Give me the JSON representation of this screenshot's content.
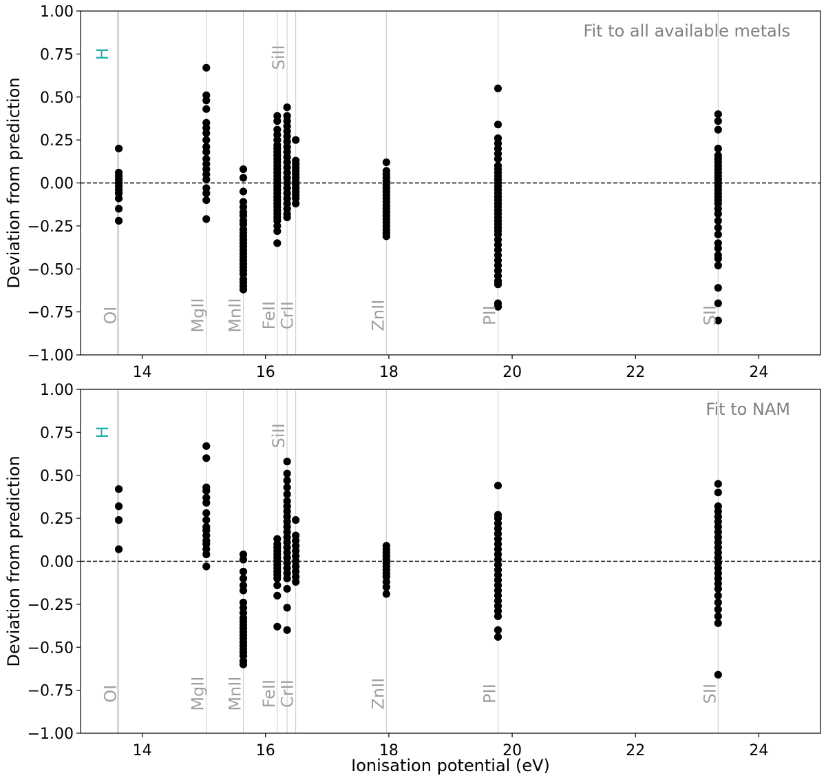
{
  "chart_data": [
    {
      "type": "scatter",
      "title": "Fit to all available metals",
      "xlabel": "",
      "ylabel": "Deviation from prediction",
      "xlim": [
        13,
        25
      ],
      "ylim": [
        -1.0,
        1.0
      ],
      "xticks": [
        "14",
        "16",
        "18",
        "20",
        "22",
        "24"
      ],
      "yticks": [
        "1.00",
        "0.75",
        "0.50",
        "0.25",
        "0.00",
        "−0.25",
        "−0.50",
        "−0.75",
        "−1.00"
      ],
      "reference_line": {
        "y": 0.0,
        "style": "dashed"
      },
      "hydrogen_line": {
        "x": 13.6,
        "label": "H",
        "color": "#20b2aa"
      },
      "ion_lines": [
        {
          "x": 13.62,
          "label": "OI",
          "label_y": -0.77
        },
        {
          "x": 15.04,
          "label": "MgII",
          "label_y": -0.77
        },
        {
          "x": 15.64,
          "label": "MnII",
          "label_y": -0.77
        },
        {
          "x": 16.19,
          "label": "FeII",
          "label_y": -0.77
        },
        {
          "x": 16.35,
          "label": "SiII",
          "label_y": 0.73
        },
        {
          "x": 16.49,
          "label": "CrII",
          "label_y": -0.77
        },
        {
          "x": 17.96,
          "label": "ZnII",
          "label_y": -0.77
        },
        {
          "x": 19.77,
          "label": "PII",
          "label_y": -0.77
        },
        {
          "x": 23.34,
          "label": "SII",
          "label_y": -0.77
        }
      ],
      "series": [
        {
          "ion": "OI",
          "x": 13.62,
          "values": [
            0.2,
            0.06,
            0.04,
            0.02,
            0.0,
            -0.02,
            -0.04,
            -0.06,
            -0.09,
            -0.15,
            -0.22
          ]
        },
        {
          "ion": "MgII",
          "x": 15.04,
          "values": [
            0.67,
            0.51,
            0.48,
            0.43,
            0.35,
            0.32,
            0.29,
            0.25,
            0.21,
            0.18,
            0.14,
            0.11,
            0.08,
            0.05,
            0.02,
            -0.03,
            -0.06,
            -0.1,
            -0.21
          ]
        },
        {
          "ion": "MnII",
          "x": 15.64,
          "values": [
            0.08,
            0.03,
            -0.05,
            -0.11,
            -0.14,
            -0.17,
            -0.19,
            -0.22,
            -0.24,
            -0.27,
            -0.29,
            -0.31,
            -0.33,
            -0.35,
            -0.37,
            -0.39,
            -0.41,
            -0.43,
            -0.45,
            -0.47,
            -0.49,
            -0.51,
            -0.53,
            -0.56,
            -0.58,
            -0.6,
            -0.62
          ]
        },
        {
          "ion": "FeII",
          "x": 16.19,
          "values": [
            0.39,
            0.36,
            0.31,
            0.28,
            0.25,
            0.22,
            0.2,
            0.18,
            0.16,
            0.14,
            0.12,
            0.1,
            0.08,
            0.06,
            0.04,
            0.02,
            0.0,
            -0.02,
            -0.04,
            -0.06,
            -0.08,
            -0.1,
            -0.12,
            -0.14,
            -0.16,
            -0.18,
            -0.2,
            -0.22,
            -0.25,
            -0.28,
            -0.35
          ]
        },
        {
          "ion": "SiII",
          "x": 16.35,
          "values": [
            0.44,
            0.39,
            0.36,
            0.33,
            0.3,
            0.27,
            0.24,
            0.21,
            0.18,
            0.15,
            0.12,
            0.09,
            0.06,
            0.03,
            0.0,
            -0.03,
            -0.06,
            -0.09,
            -0.12,
            -0.15,
            -0.18,
            -0.2
          ]
        },
        {
          "ion": "CrII",
          "x": 16.49,
          "values": [
            0.25,
            0.13,
            0.11,
            0.09,
            0.07,
            0.05,
            0.03,
            0.01,
            -0.01,
            -0.03,
            -0.05,
            -0.07,
            -0.09,
            -0.12
          ]
        },
        {
          "ion": "ZnII",
          "x": 17.96,
          "values": [
            0.12,
            0.07,
            0.05,
            0.03,
            0.01,
            -0.01,
            -0.03,
            -0.05,
            -0.07,
            -0.09,
            -0.11,
            -0.13,
            -0.15,
            -0.17,
            -0.19,
            -0.21,
            -0.23,
            -0.25,
            -0.27,
            -0.29,
            -0.31
          ]
        },
        {
          "ion": "PII",
          "x": 19.77,
          "values": [
            0.55,
            0.34,
            0.26,
            0.23,
            0.2,
            0.17,
            0.14,
            0.1,
            0.08,
            0.06,
            0.04,
            0.02,
            0.0,
            -0.02,
            -0.04,
            -0.06,
            -0.08,
            -0.1,
            -0.12,
            -0.14,
            -0.16,
            -0.18,
            -0.2,
            -0.22,
            -0.24,
            -0.26,
            -0.28,
            -0.3,
            -0.33,
            -0.36,
            -0.39,
            -0.42,
            -0.45,
            -0.48,
            -0.51,
            -0.54,
            -0.57,
            -0.59,
            -0.7,
            -0.72
          ]
        },
        {
          "ion": "SII",
          "x": 23.34,
          "values": [
            0.4,
            0.36,
            0.31,
            0.2,
            0.16,
            0.14,
            0.12,
            0.1,
            0.08,
            0.06,
            0.04,
            0.02,
            0.0,
            -0.02,
            -0.04,
            -0.06,
            -0.08,
            -0.1,
            -0.12,
            -0.15,
            -0.18,
            -0.22,
            -0.26,
            -0.3,
            -0.35,
            -0.38,
            -0.42,
            -0.44,
            -0.48,
            -0.61,
            -0.7,
            -0.8
          ]
        }
      ]
    },
    {
      "type": "scatter",
      "title": "Fit to NAM",
      "xlabel": "Ionisation potential (eV)",
      "ylabel": "Deviation from prediction",
      "xlim": [
        13,
        25
      ],
      "ylim": [
        -1.0,
        1.0
      ],
      "xticks": [
        "14",
        "16",
        "18",
        "20",
        "22",
        "24"
      ],
      "yticks": [
        "1.00",
        "0.75",
        "0.50",
        "0.25",
        "0.00",
        "−0.25",
        "−0.50",
        "−0.75",
        "−1.00"
      ],
      "reference_line": {
        "y": 0.0,
        "style": "dashed"
      },
      "hydrogen_line": {
        "x": 13.6,
        "label": "H",
        "color": "#20b2aa"
      },
      "ion_lines": [
        {
          "x": 13.62,
          "label": "OI",
          "label_y": -0.77
        },
        {
          "x": 15.04,
          "label": "MgII",
          "label_y": -0.77
        },
        {
          "x": 15.64,
          "label": "MnII",
          "label_y": -0.77
        },
        {
          "x": 16.19,
          "label": "FeII",
          "label_y": -0.77
        },
        {
          "x": 16.35,
          "label": "SiII",
          "label_y": 0.73
        },
        {
          "x": 16.49,
          "label": "CrII",
          "label_y": -0.77
        },
        {
          "x": 17.96,
          "label": "ZnII",
          "label_y": -0.77
        },
        {
          "x": 19.77,
          "label": "PII",
          "label_y": -0.77
        },
        {
          "x": 23.34,
          "label": "SII",
          "label_y": -0.77
        }
      ],
      "series": [
        {
          "ion": "OI",
          "x": 13.62,
          "values": [
            0.42,
            0.32,
            0.24,
            0.07
          ]
        },
        {
          "ion": "MgII",
          "x": 15.04,
          "values": [
            0.67,
            0.6,
            0.43,
            0.41,
            0.37,
            0.34,
            0.28,
            0.24,
            0.2,
            0.18,
            0.15,
            0.12,
            0.1,
            0.07,
            0.04,
            -0.03
          ]
        },
        {
          "ion": "MnII",
          "x": 15.64,
          "values": [
            0.04,
            0.01,
            -0.06,
            -0.1,
            -0.14,
            -0.17,
            -0.24,
            -0.27,
            -0.3,
            -0.33,
            -0.35,
            -0.37,
            -0.39,
            -0.41,
            -0.43,
            -0.45,
            -0.47,
            -0.49,
            -0.51,
            -0.53,
            -0.55,
            -0.58,
            -0.6
          ]
        },
        {
          "ion": "FeII",
          "x": 16.19,
          "values": [
            0.13,
            0.1,
            0.08,
            0.06,
            0.04,
            0.02,
            0.0,
            -0.02,
            -0.04,
            -0.06,
            -0.08,
            -0.1,
            -0.14,
            -0.2,
            -0.38
          ]
        },
        {
          "ion": "SiII",
          "x": 16.35,
          "values": [
            0.58,
            0.51,
            0.47,
            0.43,
            0.39,
            0.35,
            0.32,
            0.29,
            0.26,
            0.23,
            0.2,
            0.17,
            0.14,
            0.11,
            0.08,
            0.05,
            0.02,
            -0.01,
            -0.04,
            -0.07,
            -0.1,
            -0.16,
            -0.27,
            -0.4
          ]
        },
        {
          "ion": "CrII",
          "x": 16.49,
          "values": [
            0.24,
            0.15,
            0.12,
            0.09,
            0.06,
            0.03,
            0.0,
            -0.03,
            -0.06,
            -0.09,
            -0.12
          ]
        },
        {
          "ion": "ZnII",
          "x": 17.96,
          "values": [
            0.09,
            0.07,
            0.05,
            0.03,
            0.01,
            -0.01,
            -0.03,
            -0.05,
            -0.07,
            -0.09,
            -0.12,
            -0.15,
            -0.19
          ]
        },
        {
          "ion": "PII",
          "x": 19.77,
          "values": [
            0.44,
            0.27,
            0.25,
            0.22,
            0.19,
            0.16,
            0.13,
            0.1,
            0.07,
            0.04,
            0.01,
            -0.02,
            -0.05,
            -0.08,
            -0.11,
            -0.14,
            -0.17,
            -0.2,
            -0.23,
            -0.26,
            -0.29,
            -0.32,
            -0.4,
            -0.44
          ]
        },
        {
          "ion": "SII",
          "x": 23.34,
          "values": [
            0.45,
            0.4,
            0.32,
            0.29,
            0.26,
            0.23,
            0.2,
            0.17,
            0.14,
            0.11,
            0.08,
            0.05,
            0.02,
            -0.01,
            -0.04,
            -0.07,
            -0.1,
            -0.13,
            -0.16,
            -0.2,
            -0.24,
            -0.28,
            -0.32,
            -0.36,
            -0.66
          ]
        }
      ]
    }
  ]
}
